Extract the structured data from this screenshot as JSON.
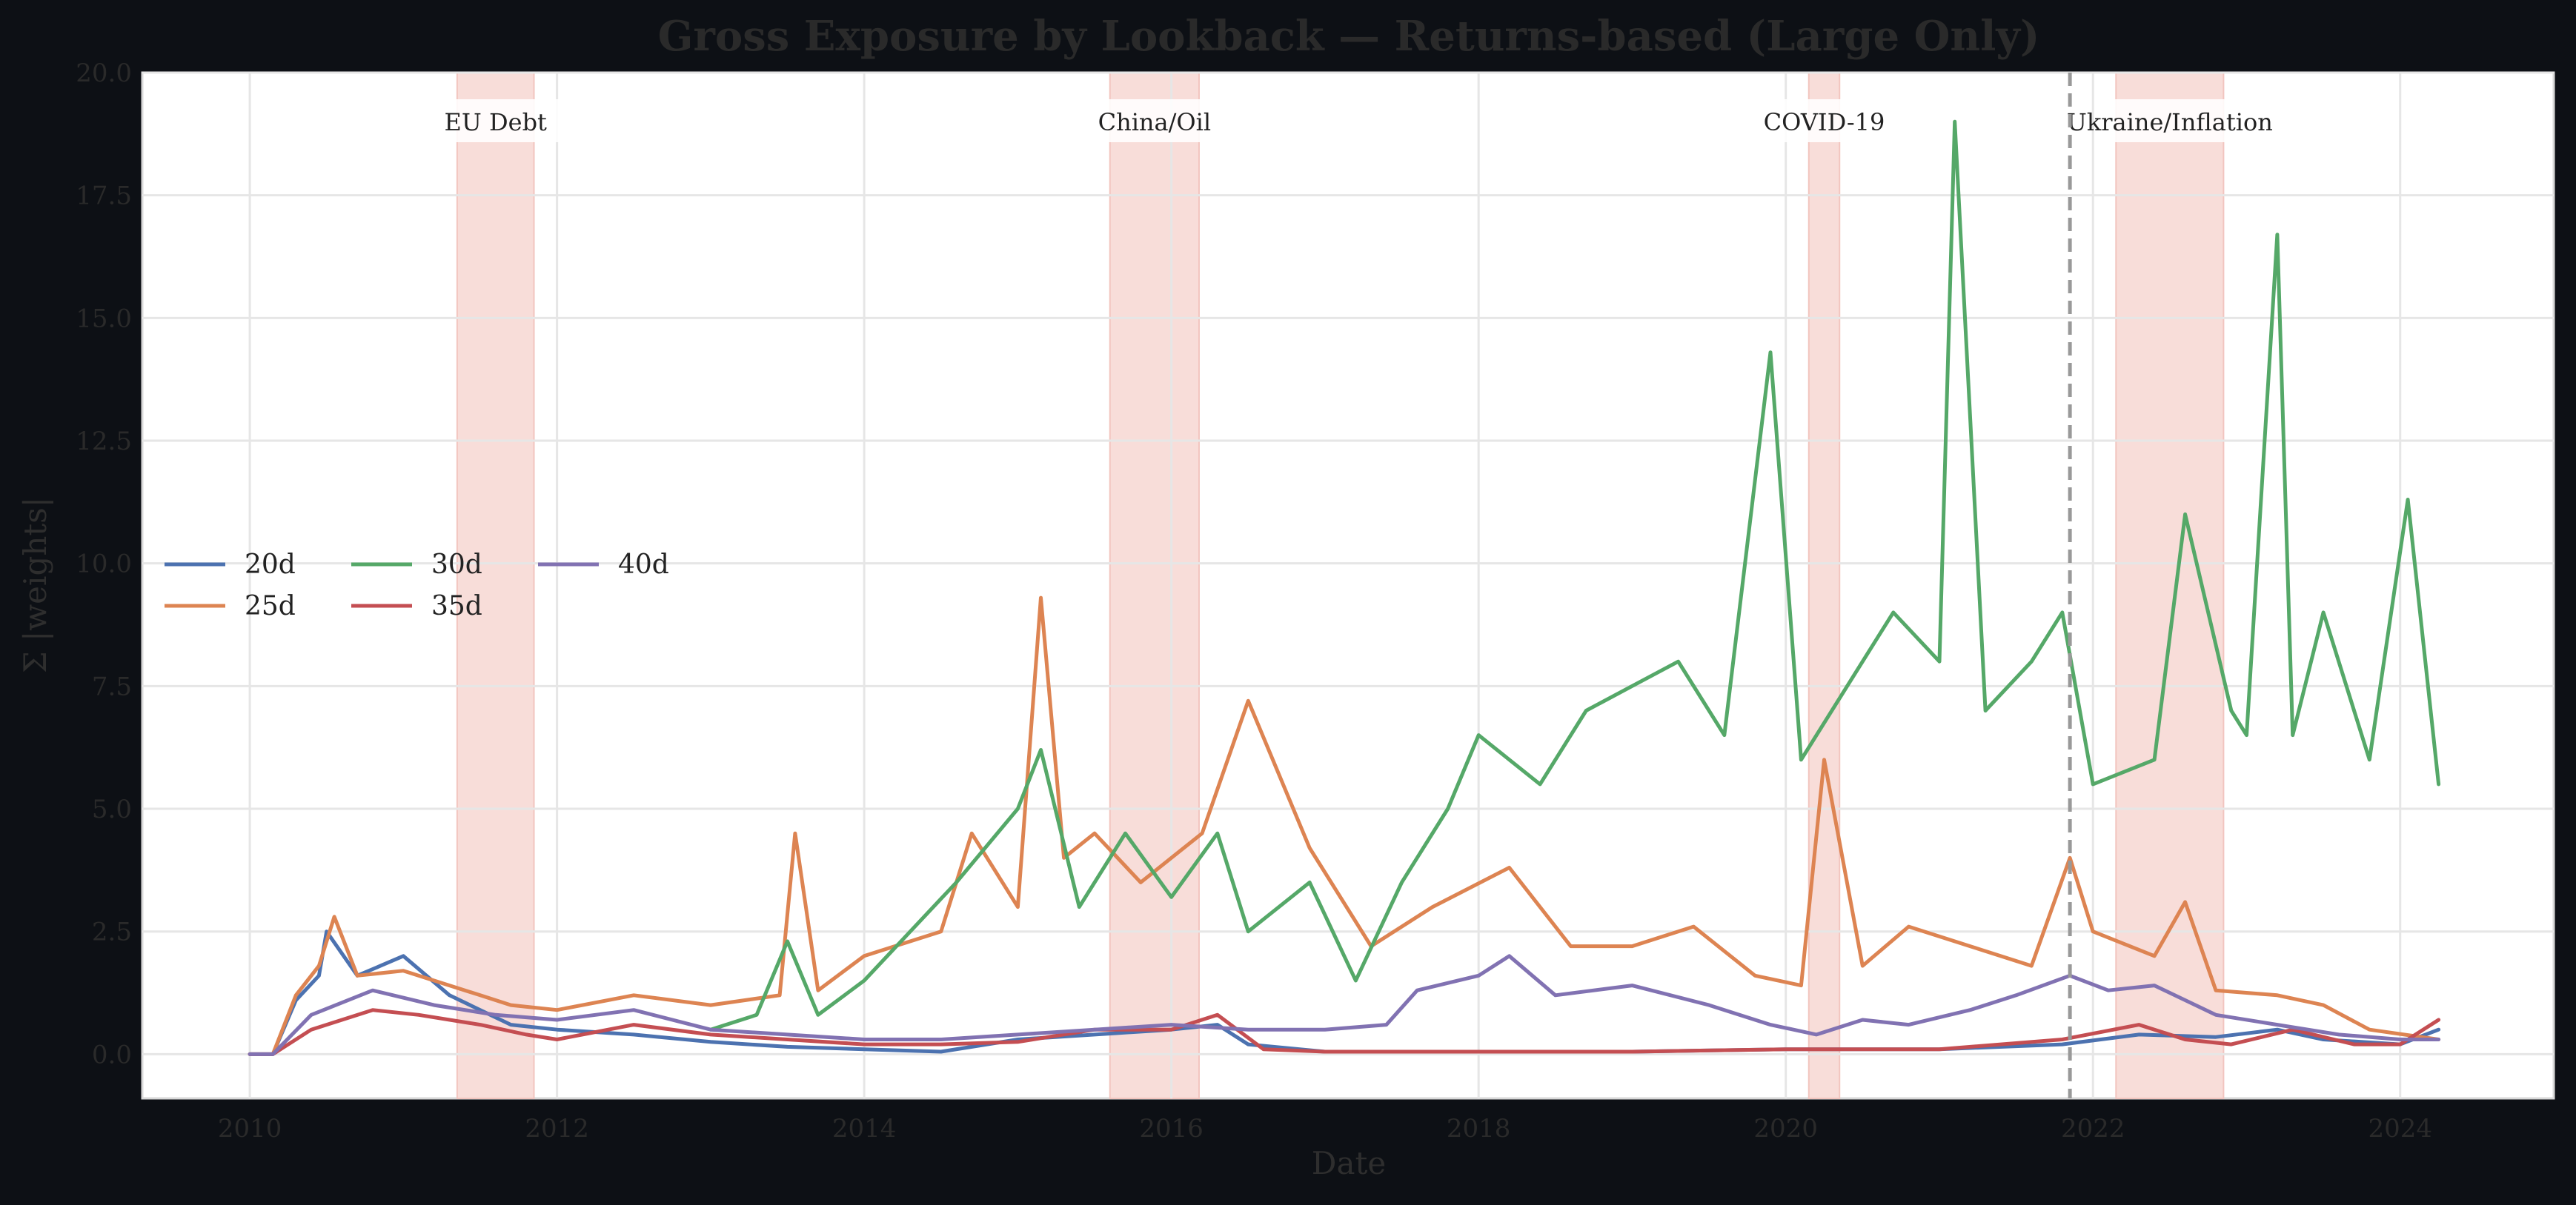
{
  "chart_data": {
    "type": "line",
    "title": "Gross Exposure by Lookback — Returns-based (Large Only)",
    "xlabel": "Date",
    "ylabel": "Σ |weights|",
    "xlim": [
      2009.3,
      2025.0
    ],
    "ylim": [
      -0.9,
      20.0
    ],
    "xticks": [
      2010,
      2012,
      2014,
      2016,
      2018,
      2020,
      2022,
      2024
    ],
    "xtick_labels": [
      "2010",
      "2012",
      "2014",
      "2016",
      "2018",
      "2020",
      "2022",
      "2024"
    ],
    "yticks": [
      0,
      2.5,
      5,
      7.5,
      10,
      12.5,
      15,
      17.5,
      20
    ],
    "ytick_labels": [
      "0.0",
      "2.5",
      "5.0",
      "7.5",
      "10.0",
      "12.5",
      "15.0",
      "17.5",
      "20.0"
    ],
    "grid": true,
    "legend_position": "center-left",
    "legend_columns": 3,
    "crisis_periods": [
      {
        "label": "EU Debt",
        "start": 2011.35,
        "end": 2011.85
      },
      {
        "label": "China/Oil",
        "start": 2015.6,
        "end": 2016.18
      },
      {
        "label": "COVID-19",
        "start": 2020.15,
        "end": 2020.35
      },
      {
        "label": "Ukraine/Inflation",
        "start": 2022.15,
        "end": 2022.85
      }
    ],
    "reference_line": {
      "x": 2021.85,
      "style": "dashed"
    },
    "series": [
      {
        "name": "20d",
        "color": "#4c72b0",
        "x": [
          2010.0,
          2010.15,
          2010.3,
          2010.45,
          2010.5,
          2010.7,
          2010.85,
          2011.0,
          2011.3,
          2011.5,
          2011.7,
          2012.0,
          2012.5,
          2013.0,
          2013.5,
          2014.0,
          2014.5,
          2015.0,
          2015.5,
          2016.0,
          2016.3,
          2016.5,
          2017.0,
          2018.0,
          2019.0,
          2020.0,
          2021.0,
          2021.8,
          2022.3,
          2022.8,
          2023.2,
          2023.5,
          2024.0,
          2024.25
        ],
        "y": [
          0.0,
          0.0,
          1.1,
          1.6,
          2.5,
          1.6,
          1.8,
          2.0,
          1.2,
          0.9,
          0.6,
          0.5,
          0.4,
          0.25,
          0.15,
          0.1,
          0.05,
          0.3,
          0.4,
          0.5,
          0.6,
          0.2,
          0.05,
          0.05,
          0.05,
          0.1,
          0.1,
          0.2,
          0.4,
          0.35,
          0.5,
          0.3,
          0.2,
          0.5
        ]
      },
      {
        "name": "25d",
        "color": "#dd8452",
        "x": [
          2010.0,
          2010.15,
          2010.3,
          2010.45,
          2010.55,
          2010.7,
          2011.0,
          2011.5,
          2011.7,
          2012.0,
          2012.5,
          2013.0,
          2013.45,
          2013.55,
          2013.7,
          2014.0,
          2014.5,
          2014.7,
          2015.0,
          2015.15,
          2015.3,
          2015.5,
          2015.8,
          2016.0,
          2016.2,
          2016.5,
          2016.9,
          2017.3,
          2017.7,
          2018.2,
          2018.6,
          2019.0,
          2019.4,
          2019.8,
          2020.1,
          2020.25,
          2020.5,
          2020.8,
          2021.2,
          2021.6,
          2021.85,
          2022.0,
          2022.4,
          2022.6,
          2022.8,
          2023.2,
          2023.5,
          2023.8,
          2024.25
        ],
        "y": [
          0.0,
          0.0,
          1.2,
          1.8,
          2.8,
          1.6,
          1.7,
          1.2,
          1.0,
          0.9,
          1.2,
          1.0,
          1.2,
          4.5,
          1.3,
          2.0,
          2.5,
          4.5,
          3.0,
          9.3,
          4.0,
          4.5,
          3.5,
          4.0,
          4.5,
          7.2,
          4.2,
          2.2,
          3.0,
          3.8,
          2.2,
          2.2,
          2.6,
          1.6,
          1.4,
          6.0,
          1.8,
          2.6,
          2.2,
          1.8,
          4.0,
          2.5,
          2.0,
          3.1,
          1.3,
          1.2,
          1.0,
          0.5,
          0.3
        ]
      },
      {
        "name": "30d",
        "color": "#55a868",
        "x": [
          2013.0,
          2013.3,
          2013.5,
          2013.7,
          2014.0,
          2014.3,
          2014.6,
          2015.0,
          2015.15,
          2015.4,
          2015.7,
          2016.0,
          2016.3,
          2016.5,
          2016.9,
          2017.2,
          2017.5,
          2017.8,
          2018.0,
          2018.4,
          2018.7,
          2019.0,
          2019.3,
          2019.6,
          2019.9,
          2020.1,
          2020.4,
          2020.7,
          2021.0,
          2021.1,
          2021.3,
          2021.6,
          2021.8,
          2022.0,
          2022.4,
          2022.6,
          2022.9,
          2023.0,
          2023.2,
          2023.3,
          2023.5,
          2023.8,
          2024.05,
          2024.25
        ],
        "y": [
          0.5,
          0.8,
          2.3,
          0.8,
          1.5,
          2.5,
          3.5,
          5.0,
          6.2,
          3.0,
          4.5,
          3.2,
          4.5,
          2.5,
          3.5,
          1.5,
          3.5,
          5.0,
          6.5,
          5.5,
          7.0,
          7.5,
          8.0,
          6.5,
          14.3,
          6.0,
          7.5,
          9.0,
          8.0,
          19.0,
          7.0,
          8.0,
          9.0,
          5.5,
          6.0,
          11.0,
          7.0,
          6.5,
          16.7,
          6.5,
          9.0,
          6.0,
          11.3,
          5.5
        ]
      },
      {
        "name": "35d",
        "color": "#c44e52",
        "x": [
          2010.0,
          2010.15,
          2010.4,
          2010.8,
          2011.1,
          2011.5,
          2011.8,
          2012.0,
          2012.5,
          2013.0,
          2013.5,
          2014.0,
          2014.5,
          2015.0,
          2015.5,
          2016.0,
          2016.3,
          2016.6,
          2017.0,
          2018.0,
          2019.0,
          2020.0,
          2021.0,
          2021.8,
          2022.3,
          2022.6,
          2022.9,
          2023.3,
          2023.7,
          2024.0,
          2024.25
        ],
        "y": [
          0.0,
          0.0,
          0.5,
          0.9,
          0.8,
          0.6,
          0.4,
          0.3,
          0.6,
          0.4,
          0.3,
          0.2,
          0.2,
          0.25,
          0.5,
          0.5,
          0.8,
          0.1,
          0.05,
          0.05,
          0.05,
          0.1,
          0.1,
          0.3,
          0.6,
          0.3,
          0.2,
          0.5,
          0.2,
          0.2,
          0.7
        ]
      },
      {
        "name": "40d",
        "color": "#8172b2",
        "x": [
          2010.0,
          2010.15,
          2010.4,
          2010.8,
          2011.2,
          2011.6,
          2012.0,
          2012.5,
          2013.0,
          2013.5,
          2014.0,
          2014.5,
          2015.0,
          2015.5,
          2016.0,
          2016.5,
          2017.0,
          2017.4,
          2017.6,
          2018.0,
          2018.2,
          2018.5,
          2019.0,
          2019.5,
          2019.9,
          2020.2,
          2020.5,
          2020.8,
          2021.2,
          2021.5,
          2021.85,
          2022.1,
          2022.4,
          2022.8,
          2023.2,
          2023.6,
          2024.0,
          2024.25
        ],
        "y": [
          0.0,
          0.0,
          0.8,
          1.3,
          1.0,
          0.8,
          0.7,
          0.9,
          0.5,
          0.4,
          0.3,
          0.3,
          0.4,
          0.5,
          0.6,
          0.5,
          0.5,
          0.6,
          1.3,
          1.6,
          2.0,
          1.2,
          1.4,
          1.0,
          0.6,
          0.4,
          0.7,
          0.6,
          0.9,
          1.2,
          1.6,
          1.3,
          1.4,
          0.8,
          0.6,
          0.4,
          0.3,
          0.3
        ]
      }
    ]
  }
}
